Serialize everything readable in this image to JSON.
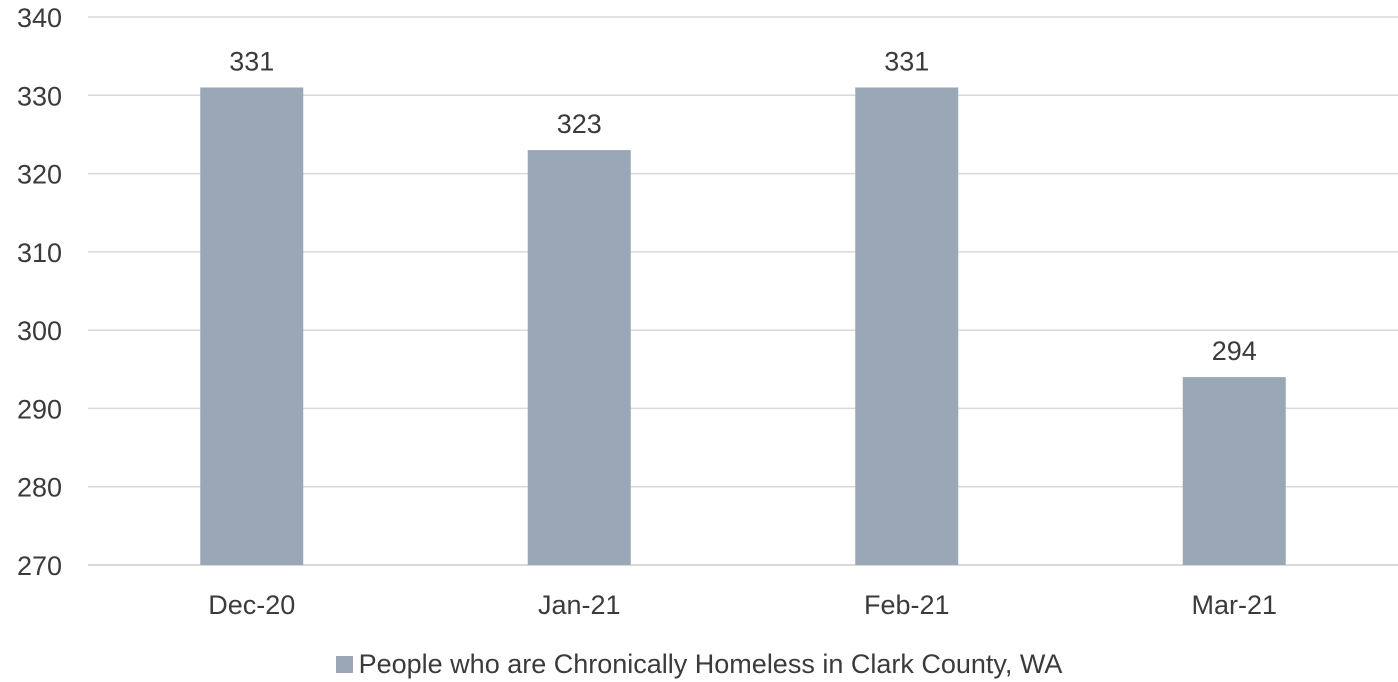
{
  "chart_data": {
    "type": "bar",
    "categories": [
      "Dec-20",
      "Jan-21",
      "Feb-21",
      "Mar-21"
    ],
    "series": [
      {
        "name": "People who are Chronically Homeless in Clark County, WA",
        "values": [
          331,
          323,
          331,
          294
        ],
        "color": "#9aa7b6"
      }
    ],
    "data_labels": [
      "331",
      "323",
      "331",
      "294"
    ],
    "ylim": [
      270,
      340
    ],
    "yticks": [
      "270",
      "280",
      "290",
      "300",
      "310",
      "320",
      "330",
      "340"
    ],
    "grid": true,
    "legend_position": "bottom"
  },
  "colors": {
    "bar": "#9aa7b6",
    "grid": "#d9d9d9",
    "text": "#3b3b3b"
  }
}
